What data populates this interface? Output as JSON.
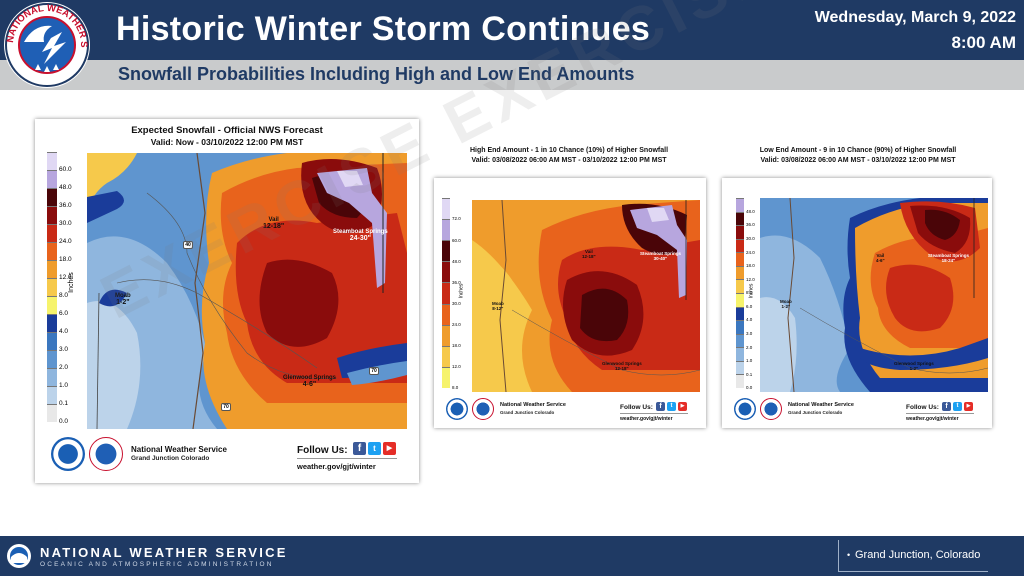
{
  "header": {
    "title": "Historic Winter Storm Continues",
    "subtitle": "Snowfall Probabilities Including High and Low End Amounts",
    "date": "Wednesday, March 9, 2022",
    "time": "8:00 AM",
    "logo_ring_text": "NATIONAL WEATHER SERVICE"
  },
  "watermark": "EXERCISE EXERCISE EXERCISE",
  "legend": {
    "unit": "Inches",
    "levels": [
      "0.0",
      "0.1",
      "1.0",
      "2.0",
      "3.0",
      "4.0",
      "6.0",
      "8.0",
      "12.0",
      "18.0",
      "24.0",
      "30.0",
      "36.0",
      "48.0",
      "60.0"
    ],
    "levels_high": [
      "8.0",
      "12.0",
      "18.0",
      "24.0",
      "30.0",
      "36.0",
      "48.0",
      "60.0",
      "72.0"
    ],
    "levels_low": [
      "0.0",
      "0.1",
      "1.0",
      "2.0",
      "3.0",
      "4.0",
      "6.0",
      "8.0",
      "12.0",
      "18.0",
      "24.0",
      "30.0",
      "36.0",
      "48.0"
    ],
    "colors": [
      "#e8e8e8",
      "#bcd3ea",
      "#8fb6de",
      "#5f95cf",
      "#3b77bf",
      "#1a3c9a",
      "#f6f36c",
      "#f6c94b",
      "#ef9c2c",
      "#e8631c",
      "#c92a16",
      "#8a0c0c",
      "#4a0508",
      "#b7a6de",
      "#e0d8f4"
    ]
  },
  "panels": {
    "main": {
      "title": "Expected Snowfall - Official NWS Forecast",
      "valid": "Valid: Now - 03/10/2022 12:00 PM MST",
      "cities": [
        {
          "name": "Vail",
          "amount": "12-18\""
        },
        {
          "name": "Steamboat Springs",
          "amount": "24-30\""
        },
        {
          "name": "Moab",
          "amount": "1-2\""
        },
        {
          "name": "Glenwood Springs",
          "amount": "4-6\""
        }
      ],
      "highways": [
        "40",
        "70",
        "70"
      ]
    },
    "high": {
      "title": "High End Amount - 1 in 10 Chance (10%) of Higher Snowfall",
      "valid": "Valid: 03/08/2022 06:00 AM MST - 03/10/2022 12:00 PM MST",
      "cities": [
        {
          "name": "Vail",
          "amount": "12-18\""
        },
        {
          "name": "Steamboat Springs",
          "amount": "30-40\""
        },
        {
          "name": "Moab",
          "amount": "8-12\""
        },
        {
          "name": "Glenwood Springs",
          "amount": "12-18\""
        }
      ]
    },
    "low": {
      "title": "Low End Amount - 9 in 10 Chance (90%) of Higher Snowfall",
      "valid": "Valid: 03/08/2022 06:00 AM MST - 03/10/2022 12:00 PM MST",
      "cities": [
        {
          "name": "Vail",
          "amount": "4-6\""
        },
        {
          "name": "Steamboat Springs",
          "amount": "18-24\""
        },
        {
          "name": "Moab",
          "amount": "1-2\""
        },
        {
          "name": "Glenwood Springs",
          "amount": "1-2\""
        }
      ]
    }
  },
  "branding": {
    "office": "National Weather Service",
    "office_location": "Grand Junction Colorado",
    "follow": "Follow Us:",
    "website": "weather.gov/gjt/winter",
    "noaa": "NOAA"
  },
  "footer": {
    "name": "NATIONAL WEATHER SERVICE",
    "agency": "OCEANIC AND ATMOSPHERIC ADMINISTRATION",
    "location": "Grand Junction, Colorado"
  }
}
